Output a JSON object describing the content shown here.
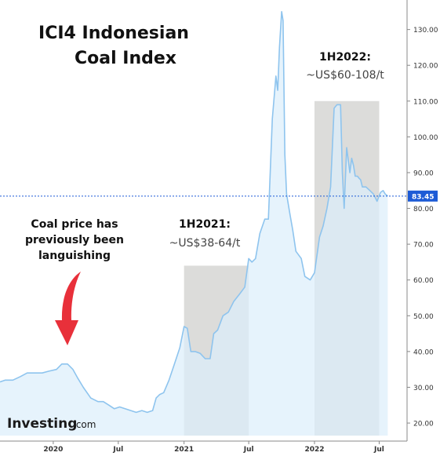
{
  "chart_data": {
    "type": "area",
    "title": [
      "ICI4 Indonesian",
      "Coal Index"
    ],
    "y_ticks": [
      20,
      30,
      40,
      50,
      60,
      70,
      80,
      90,
      100,
      110,
      120,
      130
    ],
    "y_ticks_labels": [
      "20.00",
      "30.00",
      "40.00",
      "50.00",
      "60.00",
      "70.00",
      "80.00",
      "90.00",
      "100.00",
      "110.00",
      "120.00",
      "130.00"
    ],
    "ylim": [
      16.5,
      136.5
    ],
    "x_ticks": [
      {
        "date": "2020-01-01",
        "label": "2020"
      },
      {
        "date": "2020-07-01",
        "label": "Jul"
      },
      {
        "date": "2021-01-01",
        "label": "2021"
      },
      {
        "date": "2021-07-01",
        "label": "Jul"
      },
      {
        "date": "2022-01-01",
        "label": "2022"
      },
      {
        "date": "2022-07-01",
        "label": "Jul"
      }
    ],
    "xlim": [
      "2019-08-05",
      "2022-09-17"
    ],
    "last_value": 83.45,
    "last_value_label": "83.45",
    "series": [
      {
        "x": [
          "2019-08-05",
          "2019-08-20",
          "2019-09-10",
          "2019-10-01",
          "2019-10-20",
          "2019-11-10",
          "2019-12-01",
          "2019-12-20",
          "2020-01-10",
          "2020-01-25",
          "2020-02-10",
          "2020-02-25",
          "2020-03-10",
          "2020-03-25",
          "2020-04-15",
          "2020-05-05",
          "2020-05-20",
          "2020-06-05",
          "2020-06-20",
          "2020-07-05",
          "2020-07-20",
          "2020-08-05",
          "2020-08-20",
          "2020-09-05",
          "2020-09-20",
          "2020-10-05",
          "2020-10-15",
          "2020-10-25",
          "2020-11-05",
          "2020-11-20",
          "2020-12-05",
          "2020-12-20",
          "2021-01-01",
          "2021-01-10",
          "2021-01-20",
          "2021-02-01",
          "2021-02-15",
          "2021-03-01",
          "2021-03-15",
          "2021-03-25",
          "2021-04-05",
          "2021-04-20",
          "2021-05-05",
          "2021-05-20",
          "2021-06-05",
          "2021-06-20",
          "2021-07-01",
          "2021-07-10",
          "2021-07-20",
          "2021-08-01",
          "2021-08-15",
          "2021-08-25",
          "2021-09-05",
          "2021-09-15",
          "2021-09-20",
          "2021-09-25",
          "2021-10-01",
          "2021-10-05",
          "2021-10-10",
          "2021-10-15",
          "2021-10-20",
          "2021-10-25",
          "2021-11-01",
          "2021-11-10",
          "2021-11-25",
          "2021-12-05",
          "2021-12-20",
          "2022-01-01",
          "2022-01-15",
          "2022-01-25",
          "2022-02-05",
          "2022-02-15",
          "2022-02-25",
          "2022-03-05",
          "2022-03-15",
          "2022-03-20",
          "2022-03-25",
          "2022-04-01",
          "2022-04-10",
          "2022-04-15",
          "2022-04-20",
          "2022-04-25",
          "2022-05-01",
          "2022-05-05",
          "2022-05-10",
          "2022-05-15",
          "2022-05-25",
          "2022-06-05",
          "2022-06-15",
          "2022-06-25",
          "2022-07-05",
          "2022-07-12",
          "2022-07-18",
          "2022-07-25"
        ],
        "values": [
          31.5,
          32.0,
          32.0,
          33.0,
          34.0,
          34.0,
          34.0,
          34.5,
          35.0,
          36.5,
          36.5,
          35.0,
          32.5,
          30.0,
          27.0,
          26.0,
          26.0,
          25.0,
          24.0,
          24.5,
          24.0,
          23.5,
          23.0,
          23.5,
          23.0,
          23.5,
          27.0,
          28.0,
          28.5,
          32.0,
          36.5,
          41.0,
          47.0,
          46.5,
          40.0,
          40.0,
          39.5,
          38.0,
          38.0,
          45.0,
          46.0,
          50.0,
          51.0,
          54.0,
          56.0,
          58.0,
          66.0,
          65.0,
          66.0,
          73.0,
          77.0,
          77.0,
          105.0,
          117.0,
          113.0,
          125.0,
          135.0,
          132.5,
          95.0,
          84.0,
          81.0,
          78.0,
          74.0,
          68.0,
          66.0,
          61.0,
          60.0,
          62.0,
          72.0,
          75.0,
          80.0,
          86.0,
          108.0,
          109.0,
          109.0,
          90.0,
          80.0,
          97.0,
          90.0,
          94.0,
          92.0,
          89.0,
          89.0,
          88.5,
          88.0,
          86.0,
          86.0,
          85.0,
          84.0,
          82.0,
          84.5,
          85.0,
          84.0,
          83.45
        ]
      }
    ],
    "highlights": [
      {
        "label": "1H2021:",
        "range_text": "~US$38-64/t",
        "x_start": "2021-01-01",
        "x_end": "2021-07-01",
        "y_top": 64
      },
      {
        "label": "1H2022:",
        "range_text": "~US$60-108/t",
        "x_start": "2022-01-01",
        "x_end": "2022-07-01",
        "y_top": 110
      }
    ],
    "note": [
      "Coal price has",
      "previously been",
      "languishing"
    ],
    "colors": {
      "line": "#8ec4ee",
      "fill": "#ddeefb",
      "highlight": "#dcdcda",
      "arrow": "#e8303a",
      "last_value_badge": "#1d5bd6",
      "axis": "#888888"
    }
  },
  "watermark": {
    "brand": "Investing",
    "suffix": ".com"
  }
}
